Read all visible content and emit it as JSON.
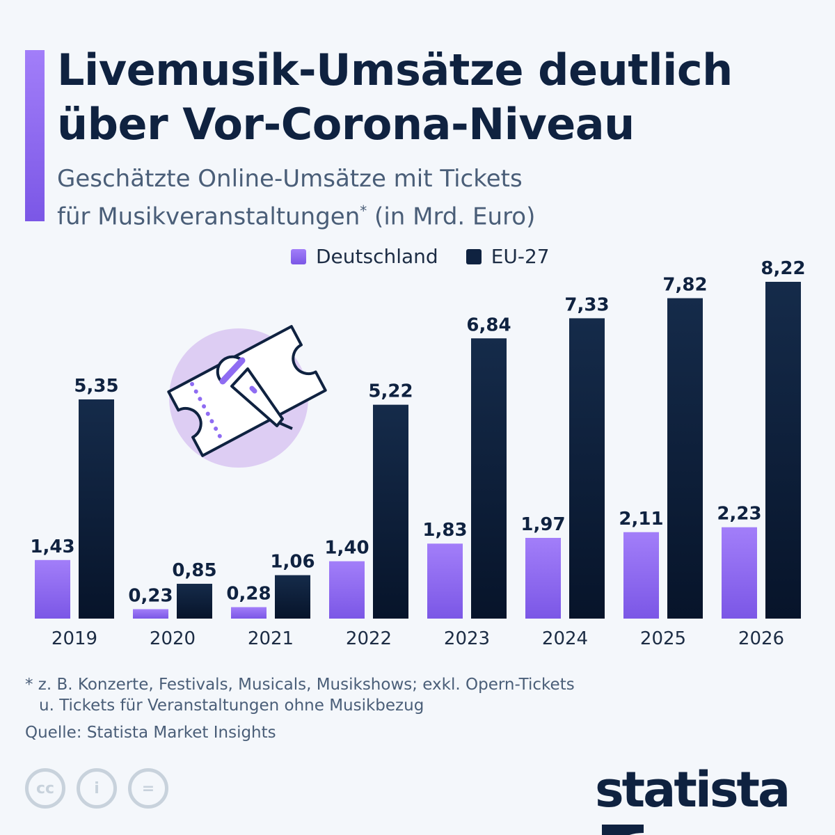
{
  "title_line1": "Livemusik-Umsätze deutlich",
  "title_line2": "über Vor-Corona-Niveau",
  "subtitle_line1": "Geschätzte Online-Umsätze mit Tickets",
  "subtitle_line2": "für Musikveranstaltungen",
  "subtitle_mark": "*",
  "subtitle_unit": " (in Mrd. Euro)",
  "footnote_line1": "* z. B. Konzerte, Festivals, Musicals, Musikshows; exkl. Opern-Tickets",
  "footnote_line2": "u. Tickets für Veranstaltungen ohne Musikbezug",
  "source": "Quelle: Statista Market Insights",
  "logo": "statista",
  "colors": {
    "deutschland": "#8f6cf2",
    "eu27": "#0f2240",
    "accent": "#9370f5",
    "circle": "#ddcdf3"
  },
  "chart_data": {
    "type": "bar",
    "categories": [
      "2019",
      "2020",
      "2021",
      "2022",
      "2023",
      "2024",
      "2025",
      "2026"
    ],
    "series": [
      {
        "name": "Deutschland",
        "values": [
          1.43,
          0.23,
          0.28,
          1.4,
          1.83,
          1.97,
          2.11,
          2.23
        ],
        "labels": [
          "1,43",
          "0,23",
          "0,28",
          "1,40",
          "1,83",
          "1,97",
          "2,11",
          "2,23"
        ]
      },
      {
        "name": "EU-27",
        "values": [
          5.35,
          0.85,
          1.06,
          5.22,
          6.84,
          7.33,
          7.82,
          8.22
        ],
        "labels": [
          "5,35",
          "0,85",
          "1,06",
          "5,22",
          "6,84",
          "7,33",
          "7,82",
          "8,22"
        ]
      }
    ],
    "ylim": [
      0,
      8.22
    ],
    "grid": false,
    "legend": "top"
  }
}
